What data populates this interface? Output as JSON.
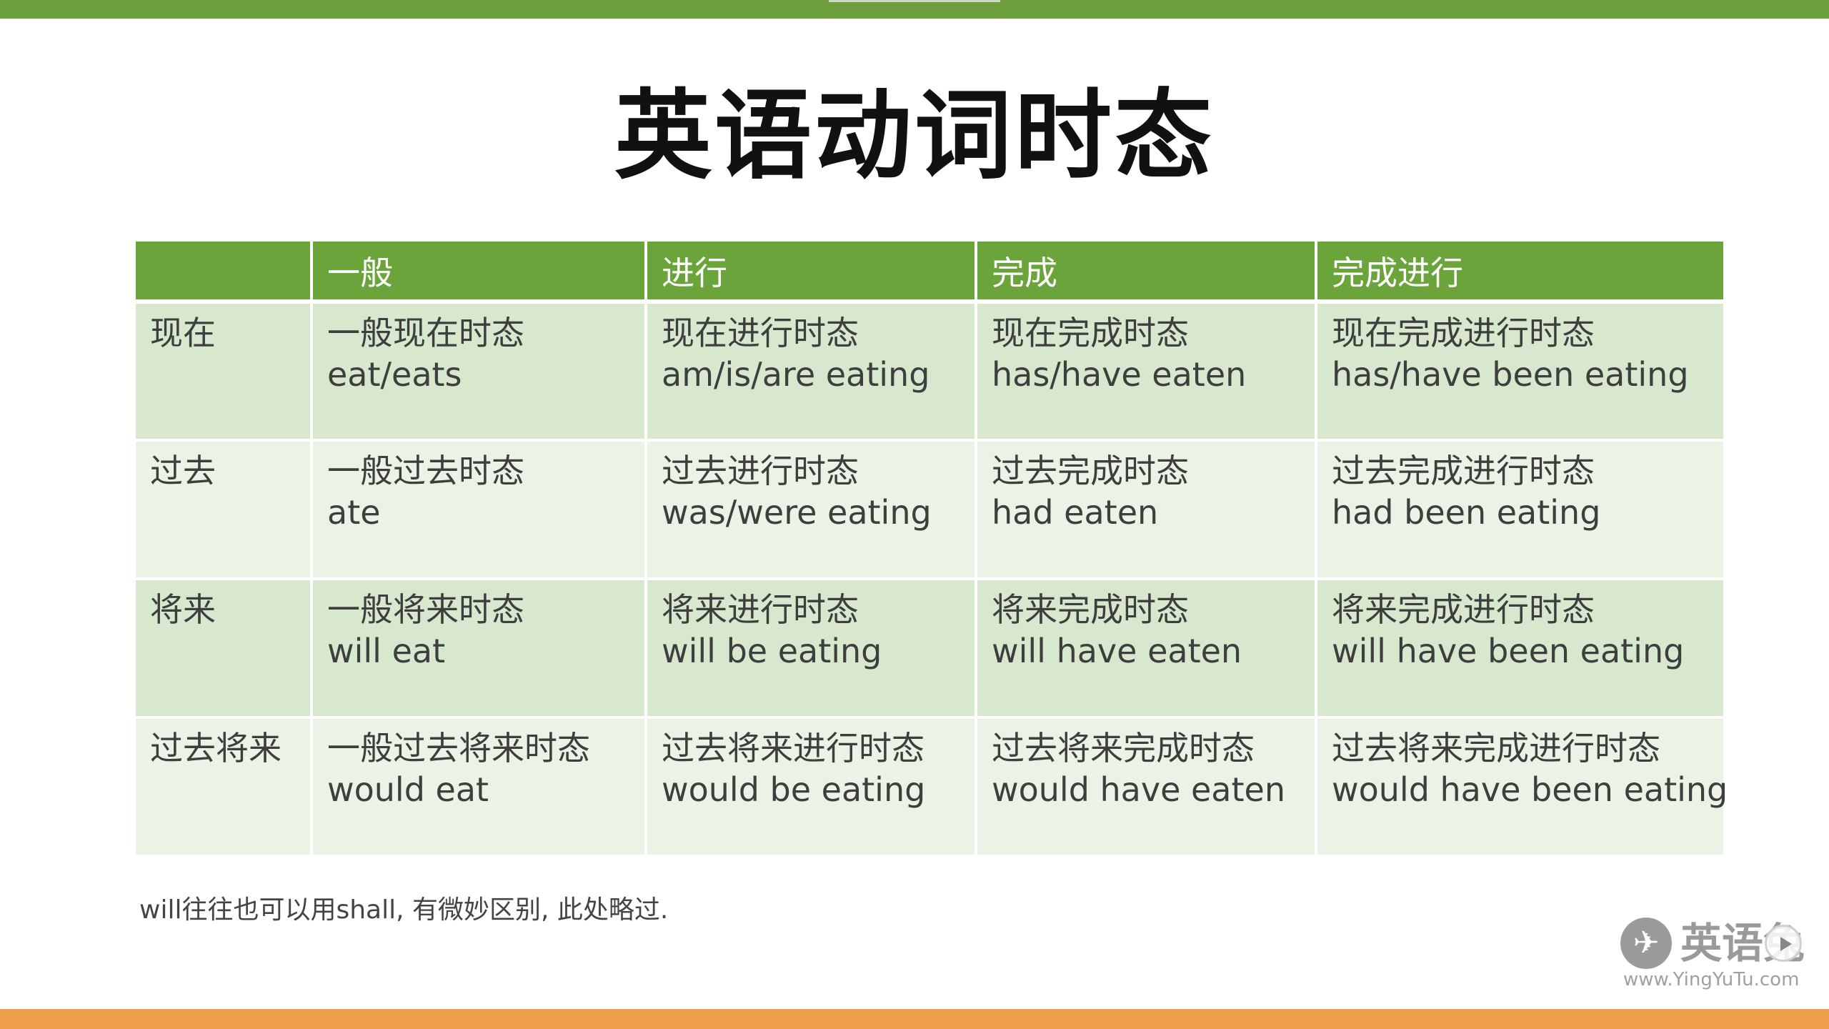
{
  "title": "英语动词时态",
  "table": {
    "headers": [
      "",
      "一般",
      "进行",
      "完成",
      "完成进行"
    ],
    "rows": [
      {
        "label": "现在",
        "cells": [
          {
            "name": "一般现在时态",
            "form": "eat/eats"
          },
          {
            "name": "现在进行时态",
            "form": "am/is/are eating"
          },
          {
            "name": "现在完成时态",
            "form": "has/have eaten"
          },
          {
            "name": "现在完成进行时态",
            "form": "has/have been eating"
          }
        ]
      },
      {
        "label": "过去",
        "cells": [
          {
            "name": "一般过去时态",
            "form": "ate"
          },
          {
            "name": "过去进行时态",
            "form": "was/were eating"
          },
          {
            "name": "过去完成时态",
            "form": "had eaten"
          },
          {
            "name": "过去完成进行时态",
            "form": "had been eating"
          }
        ]
      },
      {
        "label": "将来",
        "cells": [
          {
            "name": "一般将来时态",
            "form": "will eat"
          },
          {
            "name": "将来进行时态",
            "form": "will be eating"
          },
          {
            "name": "将来完成时态",
            "form": "will have eaten"
          },
          {
            "name": "将来完成进行时态",
            "form": "will have been eating"
          }
        ]
      },
      {
        "label": "过去将来",
        "cells": [
          {
            "name": "一般过去将来时态",
            "form": "would eat"
          },
          {
            "name": "过去将来进行时态",
            "form": "would be eating"
          },
          {
            "name": "过去将来完成时态",
            "form": "would have eaten"
          },
          {
            "name": "过去将来完成进行时态",
            "form": "would have been eating"
          }
        ]
      }
    ]
  },
  "footnote": "will往往也可以用shall, 有微妙区别, 此处略过.",
  "watermark": {
    "brand": "英语兔",
    "url": "www.YingYuTu.com",
    "logo_icon": "rabbit-logo-icon"
  },
  "colors": {
    "header_green": "#6aa43a",
    "row_odd": "#d8e8cf",
    "row_even": "#ebf3e6",
    "top_bar": "#6e9f3d",
    "bottom_bar": "#f0a04a"
  }
}
